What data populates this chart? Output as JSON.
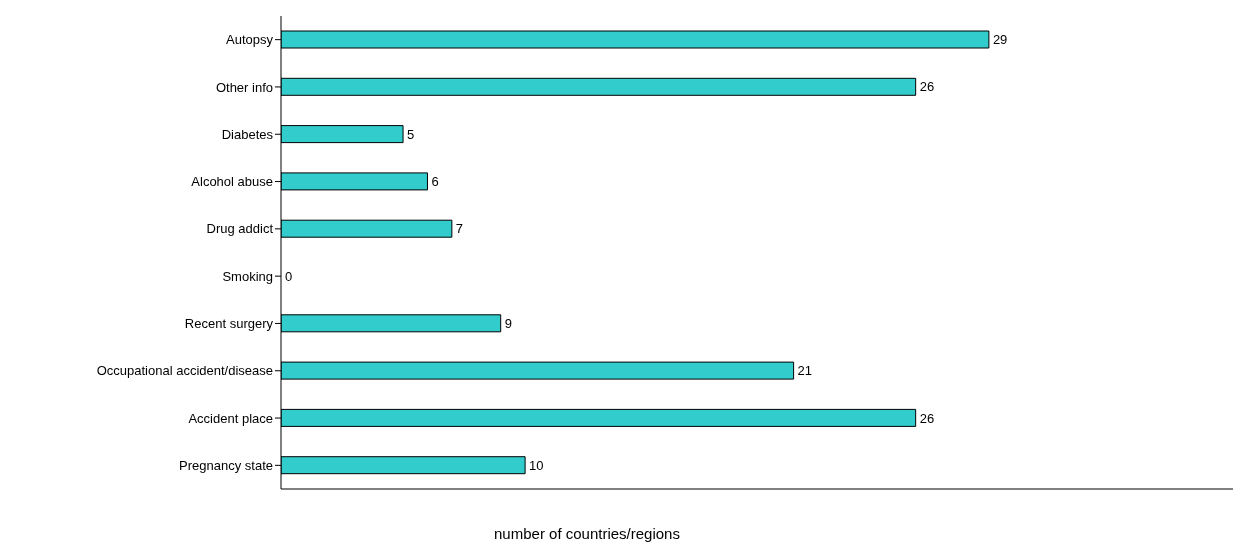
{
  "chart_data": {
    "type": "bar",
    "orientation": "horizontal",
    "xlabel": "number of countries/regions",
    "categories": [
      "Autopsy",
      "Other info",
      "Diabetes",
      "Alcohol abuse",
      "Drug addict",
      "Smoking",
      "Recent surgery",
      "Occupational accident/disease",
      "Accident place",
      "Pregnancy state"
    ],
    "values": [
      29,
      26,
      5,
      6,
      7,
      0,
      9,
      21,
      26,
      10
    ],
    "color": "#33cccc",
    "xlim": [
      0,
      39
    ],
    "data_labels": true,
    "grid": false
  }
}
